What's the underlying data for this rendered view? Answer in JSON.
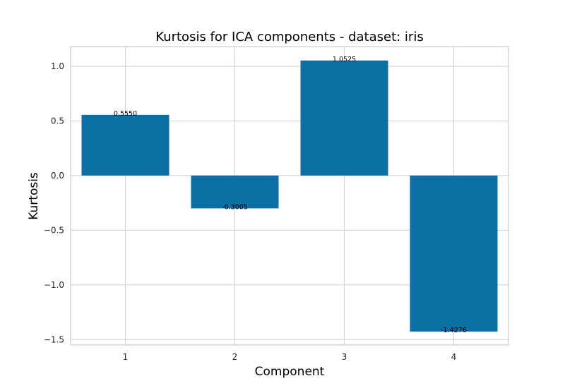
{
  "chart_data": {
    "type": "bar",
    "title": "Kurtosis for ICA components - dataset: iris",
    "xlabel": "Component",
    "ylabel": "Kurtosis",
    "categories": [
      "1",
      "2",
      "3",
      "4"
    ],
    "values": [
      0.555,
      -0.3005,
      1.0525,
      -1.4276
    ],
    "value_labels": [
      "0.5550",
      "-0.3005",
      "1.0525",
      "-1.4276"
    ],
    "ylim": [
      -1.55,
      1.18
    ],
    "yticks": [
      1.0,
      0.5,
      0.0,
      -0.5,
      -1.0,
      -1.5
    ],
    "ytick_labels": [
      "1.0",
      "0.5",
      "0.0",
      "−0.5",
      "−1.0",
      "−1.5"
    ],
    "grid": true,
    "colors": {
      "bar": "#0b6fa4",
      "grid": "#d3d3d3",
      "frame": "#cccccc",
      "background": "#ffffff"
    }
  }
}
